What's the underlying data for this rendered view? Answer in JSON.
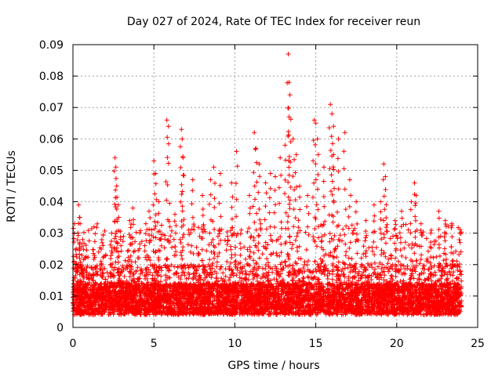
{
  "chart_data": {
    "type": "scatter",
    "title": "Day 027 of 2024, Rate Of TEC Index for receiver reun",
    "xlabel": "GPS time / hours",
    "ylabel": "ROTI / TECUs",
    "xlim": [
      0,
      25
    ],
    "ylim": [
      0,
      0.09
    ],
    "xticks": [
      0,
      5,
      10,
      15,
      20,
      25
    ],
    "xtick_labels": [
      "0",
      "5",
      "10",
      "15",
      "20",
      "25"
    ],
    "yticks": [
      0,
      0.01,
      0.02,
      0.03,
      0.04,
      0.05,
      0.06,
      0.07,
      0.08,
      0.09
    ],
    "ytick_labels": [
      "0",
      "0.01",
      "0.02",
      "0.03",
      "0.04",
      "0.05",
      "0.06",
      "0.07",
      "0.08",
      "0.09"
    ],
    "grid": true,
    "marker": "+",
    "color": "#ff0000",
    "data_x_range": [
      0,
      24
    ],
    "series": [
      {
        "points_approx": [
          [
            0.1,
            0.033
          ],
          [
            0.2,
            0.025
          ],
          [
            0.35,
            0.039
          ],
          [
            0.4,
            0.035
          ],
          [
            0.6,
            0.028
          ],
          [
            1.3,
            0.032
          ],
          [
            1.8,
            0.027
          ],
          [
            2.4,
            0.03
          ],
          [
            2.6,
            0.054
          ],
          [
            2.65,
            0.051
          ],
          [
            2.7,
            0.045
          ],
          [
            2.8,
            0.039
          ],
          [
            3.5,
            0.034
          ],
          [
            3.7,
            0.038
          ],
          [
            4.5,
            0.033
          ],
          [
            4.7,
            0.037
          ],
          [
            5.0,
            0.053
          ],
          [
            5.1,
            0.049
          ],
          [
            5.3,
            0.04
          ],
          [
            5.8,
            0.066
          ],
          [
            5.9,
            0.064
          ],
          [
            6.3,
            0.036
          ],
          [
            6.7,
            0.063
          ],
          [
            6.75,
            0.06
          ],
          [
            6.8,
            0.054
          ],
          [
            7.4,
            0.047
          ],
          [
            8.0,
            0.042
          ],
          [
            8.5,
            0.047
          ],
          [
            8.7,
            0.051
          ],
          [
            9.1,
            0.049
          ],
          [
            9.8,
            0.046
          ],
          [
            10.1,
            0.056
          ],
          [
            10.4,
            0.031
          ],
          [
            10.9,
            0.042
          ],
          [
            11.2,
            0.062
          ],
          [
            11.3,
            0.057
          ],
          [
            11.5,
            0.052
          ],
          [
            11.9,
            0.046
          ],
          [
            12.2,
            0.049
          ],
          [
            12.5,
            0.048
          ],
          [
            12.8,
            0.054
          ],
          [
            13.1,
            0.058
          ],
          [
            13.3,
            0.087
          ],
          [
            13.35,
            0.078
          ],
          [
            13.4,
            0.074
          ],
          [
            13.35,
            0.067
          ],
          [
            13.6,
            0.06
          ],
          [
            13.8,
            0.055
          ],
          [
            14.0,
            0.045
          ],
          [
            14.5,
            0.042
          ],
          [
            14.9,
            0.066
          ],
          [
            15.0,
            0.065
          ],
          [
            15.1,
            0.06
          ],
          [
            15.5,
            0.051
          ],
          [
            15.9,
            0.071
          ],
          [
            16.0,
            0.068
          ],
          [
            16.1,
            0.064
          ],
          [
            16.1,
            0.055
          ],
          [
            16.4,
            0.06
          ],
          [
            16.8,
            0.062
          ],
          [
            17.1,
            0.047
          ],
          [
            17.5,
            0.04
          ],
          [
            18.1,
            0.034
          ],
          [
            18.6,
            0.039
          ],
          [
            19.0,
            0.04
          ],
          [
            19.2,
            0.052
          ],
          [
            19.3,
            0.048
          ],
          [
            19.9,
            0.034
          ],
          [
            20.3,
            0.037
          ],
          [
            20.9,
            0.04
          ],
          [
            21.1,
            0.046
          ],
          [
            21.2,
            0.042
          ],
          [
            21.5,
            0.033
          ],
          [
            22.1,
            0.03
          ],
          [
            22.6,
            0.037
          ],
          [
            23.0,
            0.034
          ],
          [
            23.4,
            0.033
          ],
          [
            23.9,
            0.03
          ]
        ],
        "dense_band": {
          "x_range": [
            0,
            24
          ],
          "y_range": [
            0.002,
            0.02
          ],
          "typical_y": 0.009
        }
      }
    ]
  }
}
